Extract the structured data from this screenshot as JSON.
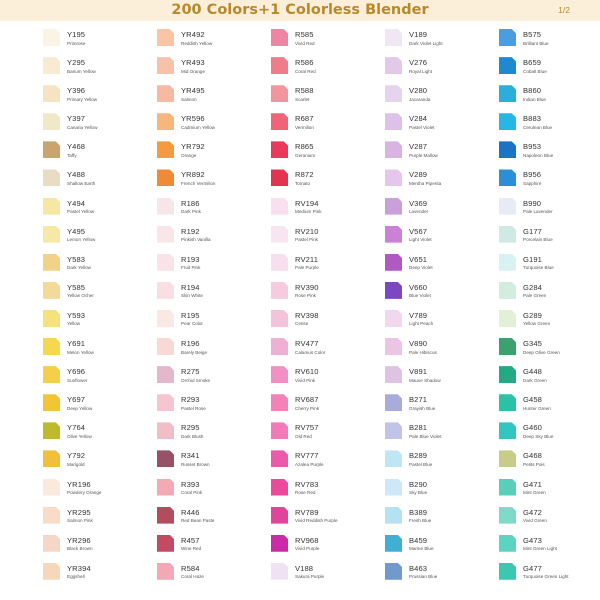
{
  "header": {
    "title": "200 Colors+1 Colorless Blender",
    "page": "1/2",
    "bg": "#fbefd9",
    "accent": "#b8892b"
  },
  "columns": [
    [
      {
        "code": "Y195",
        "name": "Primrose",
        "color": "#fbf3e4"
      },
      {
        "code": "Y295",
        "name": "Barium Yellow",
        "color": "#f8ead3"
      },
      {
        "code": "Y396",
        "name": "Primary Yellow",
        "color": "#f5e3c2"
      },
      {
        "code": "Y397",
        "name": "Canaria Yellow",
        "color": "#f0e8c6"
      },
      {
        "code": "Y468",
        "name": "Taffy",
        "color": "#c9a46f"
      },
      {
        "code": "Y488",
        "name": "Shallow Earth",
        "color": "#e8dcc5"
      },
      {
        "code": "Y494",
        "name": "Pastel Yellow",
        "color": "#f6e7a3"
      },
      {
        "code": "Y495",
        "name": "Lemon Yellow",
        "color": "#f6e9a8"
      },
      {
        "code": "Y583",
        "name": "Dark Yellow",
        "color": "#f1d286"
      },
      {
        "code": "Y585",
        "name": "Yellow Ocher",
        "color": "#f2da9a"
      },
      {
        "code": "Y593",
        "name": "Yellow",
        "color": "#f6e27a"
      },
      {
        "code": "Y691",
        "name": "Melon Yellow",
        "color": "#f5d84c"
      },
      {
        "code": "Y696",
        "name": "Sunflower",
        "color": "#f5cf45"
      },
      {
        "code": "Y697",
        "name": "Deep Yellow",
        "color": "#f3c536"
      },
      {
        "code": "Y764",
        "name": "Olive Yellow",
        "color": "#bebb2a"
      },
      {
        "code": "Y792",
        "name": "Marigold",
        "color": "#f2bf3b"
      },
      {
        "code": "YR196",
        "name": "Powdery Orange",
        "color": "#faeadd"
      },
      {
        "code": "YR295",
        "name": "Salmon Pink",
        "color": "#f8dcc8"
      },
      {
        "code": "YR296",
        "name": "Black Brown",
        "color": "#f6d6c7"
      },
      {
        "code": "YR394",
        "name": "Eggshell",
        "color": "#f7d7b9"
      }
    ],
    [
      {
        "code": "YR492",
        "name": "Reddish Yellow",
        "color": "#f9c6a5"
      },
      {
        "code": "YR493",
        "name": "Mid Orange",
        "color": "#f8c1a9"
      },
      {
        "code": "YR495",
        "name": "Salmon",
        "color": "#f6b9a2"
      },
      {
        "code": "YR596",
        "name": "Cadmium Yellow",
        "color": "#f7b67b"
      },
      {
        "code": "YR792",
        "name": "Orange",
        "color": "#f69a3f"
      },
      {
        "code": "YR892",
        "name": "French Vermilion",
        "color": "#f08a35"
      },
      {
        "code": "R186",
        "name": "Dark Pink",
        "color": "#f8e5ea"
      },
      {
        "code": "R192",
        "name": "Pinkish Vanilla",
        "color": "#f9e6e8"
      },
      {
        "code": "R193",
        "name": "Fruit Pink",
        "color": "#fae3e7"
      },
      {
        "code": "R194",
        "name": "Skin White",
        "color": "#f9dfe2"
      },
      {
        "code": "R195",
        "name": "Pear Color",
        "color": "#fae8e5"
      },
      {
        "code": "R196",
        "name": "Barely Beige",
        "color": "#f8d9d6"
      },
      {
        "code": "R275",
        "name": "Orchid Smoke",
        "color": "#e3b8c8"
      },
      {
        "code": "R293",
        "name": "Pastel Rose",
        "color": "#f5c6cf"
      },
      {
        "code": "R295",
        "name": "Dark Blush",
        "color": "#f2bdc6"
      },
      {
        "code": "R341",
        "name": "Russet Brown",
        "color": "#975266"
      },
      {
        "code": "R393",
        "name": "Coral Pink",
        "color": "#f4aab4"
      },
      {
        "code": "R446",
        "name": "Red Bean Paste",
        "color": "#b34d5d"
      },
      {
        "code": "R457",
        "name": "Wine Red",
        "color": "#c44962"
      },
      {
        "code": "R584",
        "name": "Coral Haze",
        "color": "#f4a7b4"
      }
    ],
    [
      {
        "code": "R585",
        "name": "Vivid Red",
        "color": "#ef84a4"
      },
      {
        "code": "R586",
        "name": "Coral Red",
        "color": "#f07b8b"
      },
      {
        "code": "R588",
        "name": "Scarlet",
        "color": "#f3959f"
      },
      {
        "code": "R687",
        "name": "Vermilion",
        "color": "#f16478"
      },
      {
        "code": "R865",
        "name": "Geranium",
        "color": "#e93a5b"
      },
      {
        "code": "R872",
        "name": "Tomato",
        "color": "#e23450"
      },
      {
        "code": "RV194",
        "name": "Medium Pink",
        "color": "#f8e0ee"
      },
      {
        "code": "RV210",
        "name": "Pastel Pink",
        "color": "#f9e5f1"
      },
      {
        "code": "RV211",
        "name": "Pale Purple",
        "color": "#f8dfee"
      },
      {
        "code": "RV390",
        "name": "Rose Pink",
        "color": "#f6cbe0"
      },
      {
        "code": "RV398",
        "name": "Cerise",
        "color": "#f4c3da"
      },
      {
        "code": "RV477",
        "name": "Calamus Color",
        "color": "#eeb1d4"
      },
      {
        "code": "RV610",
        "name": "Vivid Pink",
        "color": "#f28fc3"
      },
      {
        "code": "RV687",
        "name": "Cherry Pink",
        "color": "#f482ba"
      },
      {
        "code": "RV757",
        "name": "Old Red",
        "color": "#f27ab6"
      },
      {
        "code": "RV777",
        "name": "Azalea Purple",
        "color": "#ec5ba9"
      },
      {
        "code": "RV783",
        "name": "Rose Red",
        "color": "#ea4a99"
      },
      {
        "code": "RV789",
        "name": "Vivid Reddish Purple",
        "color": "#e1449b"
      },
      {
        "code": "RV968",
        "name": "Vivid Purple",
        "color": "#cc2aa6"
      },
      {
        "code": "V188",
        "name": "Sakura Purple",
        "color": "#efe3f3"
      }
    ],
    [
      {
        "code": "V189",
        "name": "Dark Violet Light",
        "color": "#f1e6f4"
      },
      {
        "code": "V276",
        "name": "Royal Light",
        "color": "#e2c9ea"
      },
      {
        "code": "V280",
        "name": "Jacaranda",
        "color": "#e6d3ee"
      },
      {
        "code": "V284",
        "name": "Pastel Violet",
        "color": "#dcc2e8"
      },
      {
        "code": "V287",
        "name": "Purple Mallow",
        "color": "#d8b4e3"
      },
      {
        "code": "V289",
        "name": "Mentha Piperita",
        "color": "#e4c7ea"
      },
      {
        "code": "V369",
        "name": "Lavender",
        "color": "#c9a0da"
      },
      {
        "code": "V567",
        "name": "Light Violet",
        "color": "#c982d4"
      },
      {
        "code": "V651",
        "name": "Deep Violet",
        "color": "#b159c3"
      },
      {
        "code": "V660",
        "name": "Blue Violet",
        "color": "#7b48c1"
      },
      {
        "code": "V789",
        "name": "Light Peach",
        "color": "#f0d8ee"
      },
      {
        "code": "V890",
        "name": "Pale Hibiscus",
        "color": "#ecc5e4"
      },
      {
        "code": "V891",
        "name": "Mauve Shadow",
        "color": "#dfc3e3"
      },
      {
        "code": "B271",
        "name": "Grayish Blue",
        "color": "#a8acdb"
      },
      {
        "code": "B281",
        "name": "Pale Blue Violet",
        "color": "#c1c3e9"
      },
      {
        "code": "B289",
        "name": "Pastel Blue",
        "color": "#bfe6f3"
      },
      {
        "code": "B290",
        "name": "Sky Blue",
        "color": "#cde8f8"
      },
      {
        "code": "B389",
        "name": "Fresh Blue",
        "color": "#b5e2f2"
      },
      {
        "code": "B459",
        "name": "Marine Blue",
        "color": "#3fb0d3"
      },
      {
        "code": "B463",
        "name": "Prussian Blue",
        "color": "#6f9acb"
      }
    ],
    [
      {
        "code": "B575",
        "name": "Brilliant Blue",
        "color": "#4a9ee0"
      },
      {
        "code": "B659",
        "name": "Cobalt Blue",
        "color": "#1f88d0"
      },
      {
        "code": "B860",
        "name": "Indian Blue",
        "color": "#2ab0d8"
      },
      {
        "code": "B883",
        "name": "Cerulean Blue",
        "color": "#26b7e4"
      },
      {
        "code": "B953",
        "name": "Napoleon Blue",
        "color": "#1a73c5"
      },
      {
        "code": "B956",
        "name": "Sapphire",
        "color": "#2c8fd6"
      },
      {
        "code": "B990",
        "name": "Pale Lavender",
        "color": "#e8eaf5"
      },
      {
        "code": "G177",
        "name": "Porcelain Blue",
        "color": "#cfe9e4"
      },
      {
        "code": "G191",
        "name": "Turquoise Blue",
        "color": "#d8f1f3"
      },
      {
        "code": "G284",
        "name": "Pale Green",
        "color": "#d3ece0"
      },
      {
        "code": "G289",
        "name": "Yellow Green",
        "color": "#e2f0d5"
      },
      {
        "code": "G345",
        "name": "Deep Olive Green",
        "color": "#3ba26f"
      },
      {
        "code": "G448",
        "name": "Dark Green",
        "color": "#23a984"
      },
      {
        "code": "G458",
        "name": "Hunter Green",
        "color": "#29c2a4"
      },
      {
        "code": "G460",
        "name": "Deep Sky Blue",
        "color": "#30c7c3"
      },
      {
        "code": "G468",
        "name": "Petits Pois",
        "color": "#c7cd88"
      },
      {
        "code": "G471",
        "name": "Mint Green",
        "color": "#58cfb8"
      },
      {
        "code": "G472",
        "name": "Vivid Green",
        "color": "#7fdac9"
      },
      {
        "code": "G473",
        "name": "Mint Green Light",
        "color": "#5bd4c2"
      },
      {
        "code": "G477",
        "name": "Turquoise Green Light",
        "color": "#3cc7b2"
      }
    ]
  ]
}
